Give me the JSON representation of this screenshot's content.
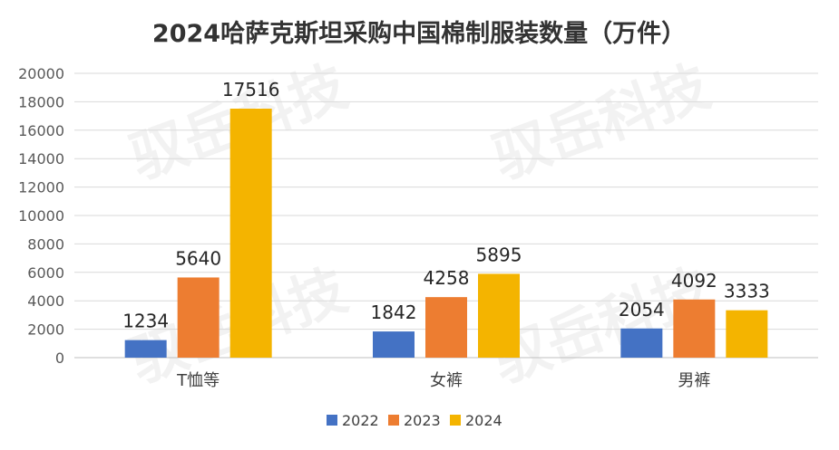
{
  "chart_data": {
    "type": "bar",
    "title": "2024哈萨克斯坦采购中国棉制服装数量（万件）",
    "categories": [
      "T恤等",
      "女裤",
      "男裤"
    ],
    "series": [
      {
        "name": "2022",
        "color": "#4472C4",
        "values": [
          1234,
          1842,
          2054
        ]
      },
      {
        "name": "2023",
        "color": "#ED7D31",
        "values": [
          5640,
          4258,
          4092
        ]
      },
      {
        "name": "2024",
        "color": "#F4B400",
        "values": [
          17516,
          5895,
          3333
        ]
      }
    ],
    "ylim": [
      0,
      20000
    ],
    "yticks": [
      0,
      2000,
      4000,
      6000,
      8000,
      10000,
      12000,
      14000,
      16000,
      18000,
      20000
    ],
    "grid": true,
    "legend_position": "bottom",
    "watermark": "驭岳科技"
  }
}
